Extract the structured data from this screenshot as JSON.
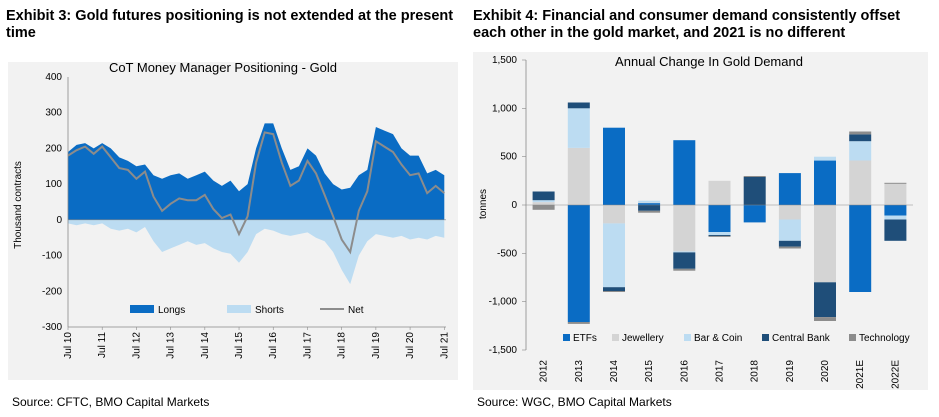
{
  "exhibit3": {
    "title": "Exhibit 3: Gold futures positioning is not extended at the present time",
    "source": "Source:  CFTC, BMO Capital Markets"
  },
  "exhibit4": {
    "title": "Exhibit 4: Financial and consumer demand consistently offset each other in the gold market, and 2021 is no different",
    "source": "Source:  WGC, BMO Capital Markets"
  },
  "colors": {
    "longs": "#0a6cc4",
    "shorts": "#bcdcf2",
    "net": "#8c8c8c",
    "etfs": "#0a6cc4",
    "jewellery": "#d4d4d4",
    "barcoin": "#bcdcf2",
    "centralbank": "#1f4e79",
    "technology": "#8c8c8c"
  },
  "chart_data": [
    {
      "type": "area",
      "title": "CoT Money Manager Positioning - Gold",
      "ylabel": "Thousand contracts",
      "ylim": [
        -300,
        400
      ],
      "yticks": [
        "400",
        "300",
        "200",
        "100",
        "0",
        "-100",
        "-200",
        "-300"
      ],
      "xticks": [
        "Jul 10",
        "Jul 11",
        "Jul 12",
        "Jul 13",
        "Jul 14",
        "Jul 15",
        "Jul 16",
        "Jul 17",
        "Jul 18",
        "Jul 19",
        "Jul 20",
        "Jul 21"
      ],
      "legend": [
        "Longs",
        "Shorts",
        "Net"
      ],
      "legend_position": "bottom",
      "x": [
        2010.5,
        2010.75,
        2011.0,
        2011.25,
        2011.5,
        2011.75,
        2012.0,
        2012.25,
        2012.5,
        2012.75,
        2013.0,
        2013.25,
        2013.5,
        2013.75,
        2014.0,
        2014.25,
        2014.5,
        2014.75,
        2015.0,
        2015.25,
        2015.5,
        2015.75,
        2016.0,
        2016.25,
        2016.5,
        2016.75,
        2017.0,
        2017.25,
        2017.5,
        2017.75,
        2018.0,
        2018.25,
        2018.5,
        2018.75,
        2019.0,
        2019.25,
        2019.5,
        2019.75,
        2020.0,
        2020.25,
        2020.5,
        2020.75,
        2021.0,
        2021.25,
        2021.5
      ],
      "series": [
        {
          "name": "Longs",
          "values": [
            190,
            210,
            215,
            200,
            215,
            200,
            175,
            165,
            150,
            155,
            125,
            115,
            125,
            130,
            115,
            125,
            135,
            110,
            95,
            110,
            80,
            100,
            200,
            270,
            270,
            200,
            140,
            150,
            200,
            180,
            130,
            100,
            85,
            90,
            125,
            140,
            260,
            250,
            240,
            200,
            180,
            180,
            130,
            140,
            125
          ]
        },
        {
          "name": "Shorts",
          "values": [
            -10,
            -15,
            -10,
            -15,
            -10,
            -25,
            -30,
            -25,
            -35,
            -20,
            -60,
            -90,
            -80,
            -70,
            -60,
            -70,
            -65,
            -80,
            -90,
            -95,
            -120,
            -90,
            -40,
            -25,
            -30,
            -40,
            -45,
            -40,
            -35,
            -50,
            -60,
            -90,
            -140,
            -180,
            -100,
            -60,
            -40,
            -45,
            -50,
            -45,
            -55,
            -50,
            -55,
            -45,
            -50
          ]
        },
        {
          "name": "Net",
          "values": [
            180,
            195,
            205,
            185,
            205,
            175,
            145,
            140,
            115,
            135,
            65,
            25,
            45,
            60,
            55,
            55,
            70,
            30,
            5,
            15,
            -40,
            10,
            160,
            245,
            240,
            160,
            95,
            110,
            165,
            130,
            70,
            10,
            -55,
            -90,
            25,
            80,
            220,
            205,
            190,
            155,
            125,
            130,
            75,
            95,
            75
          ]
        }
      ]
    },
    {
      "type": "bar",
      "stacked": true,
      "title": "Annual Change In Gold Demand",
      "ylabel": "tonnes",
      "ylim": [
        -1500,
        1500
      ],
      "yticks": [
        "1,500",
        "1,000",
        "500",
        "0",
        "-500",
        "-1,000",
        "-1,500"
      ],
      "categories": [
        "2012",
        "2013",
        "2014",
        "2015",
        "2016",
        "2017",
        "2018",
        "2019",
        "2020",
        "2021E",
        "2022E"
      ],
      "legend_position": "bottom",
      "series": [
        {
          "name": "ETFs",
          "values": [
            0,
            -1210,
            800,
            20,
            670,
            -280,
            -180,
            330,
            460,
            -900,
            -110
          ]
        },
        {
          "name": "Jewellery",
          "values": [
            30,
            590,
            -190,
            5,
            -480,
            250,
            0,
            -150,
            -800,
            460,
            220
          ]
        },
        {
          "name": "Bar & Coin",
          "values": [
            20,
            410,
            -660,
            20,
            -10,
            -30,
            0,
            -220,
            40,
            200,
            -40
          ]
        },
        {
          "name": "Central Bank",
          "values": [
            90,
            60,
            -40,
            -60,
            -170,
            -10,
            290,
            -60,
            -360,
            70,
            -220
          ]
        },
        {
          "name": "Technology",
          "values": [
            -50,
            -20,
            -10,
            -20,
            -20,
            -10,
            10,
            -20,
            -40,
            30,
            10
          ]
        }
      ]
    }
  ]
}
